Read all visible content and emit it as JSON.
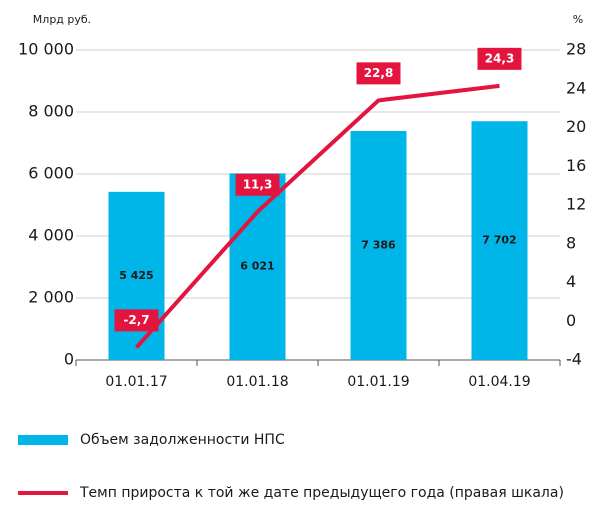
{
  "chart_data": {
    "type": "bar_line",
    "y_label": "Млрд руб.",
    "y2_label": "%",
    "categories": [
      "01.01.17",
      "01.01.18",
      "01.01.19",
      "01.04.19"
    ],
    "series": [
      {
        "name": "Объем задолженности НПС",
        "color": "#00b5e8",
        "type": "bar",
        "values": [
          5425,
          6021,
          7386,
          7702
        ],
        "value_labels": [
          "5 425",
          "6 021",
          "7 386",
          "7 702"
        ]
      },
      {
        "name": "Темп прироста к той же дате предыдущего года (правая шкала)",
        "color": "#e3153f",
        "type": "line",
        "axis": "y2",
        "values": [
          -2.7,
          11.3,
          22.8,
          24.3
        ],
        "value_labels": [
          "-2,7",
          "11,3",
          "22,8",
          "24,3"
        ]
      }
    ],
    "ylim": [
      0,
      10000
    ],
    "yticks": [
      0,
      {
        "value": 2000,
        "label": "2 000"
      },
      {
        "value": 4000,
        "label": "4 000"
      },
      {
        "value": 6000,
        "label": "6 000"
      },
      {
        "value": 8000,
        "label": "8 000"
      },
      {
        "value": 10000,
        "label": "10 000"
      }
    ],
    "y2lim": [
      -4,
      28
    ],
    "y2ticks": [
      -4,
      0,
      4,
      8,
      12,
      16,
      20,
      24,
      28
    ],
    "grid": true
  }
}
